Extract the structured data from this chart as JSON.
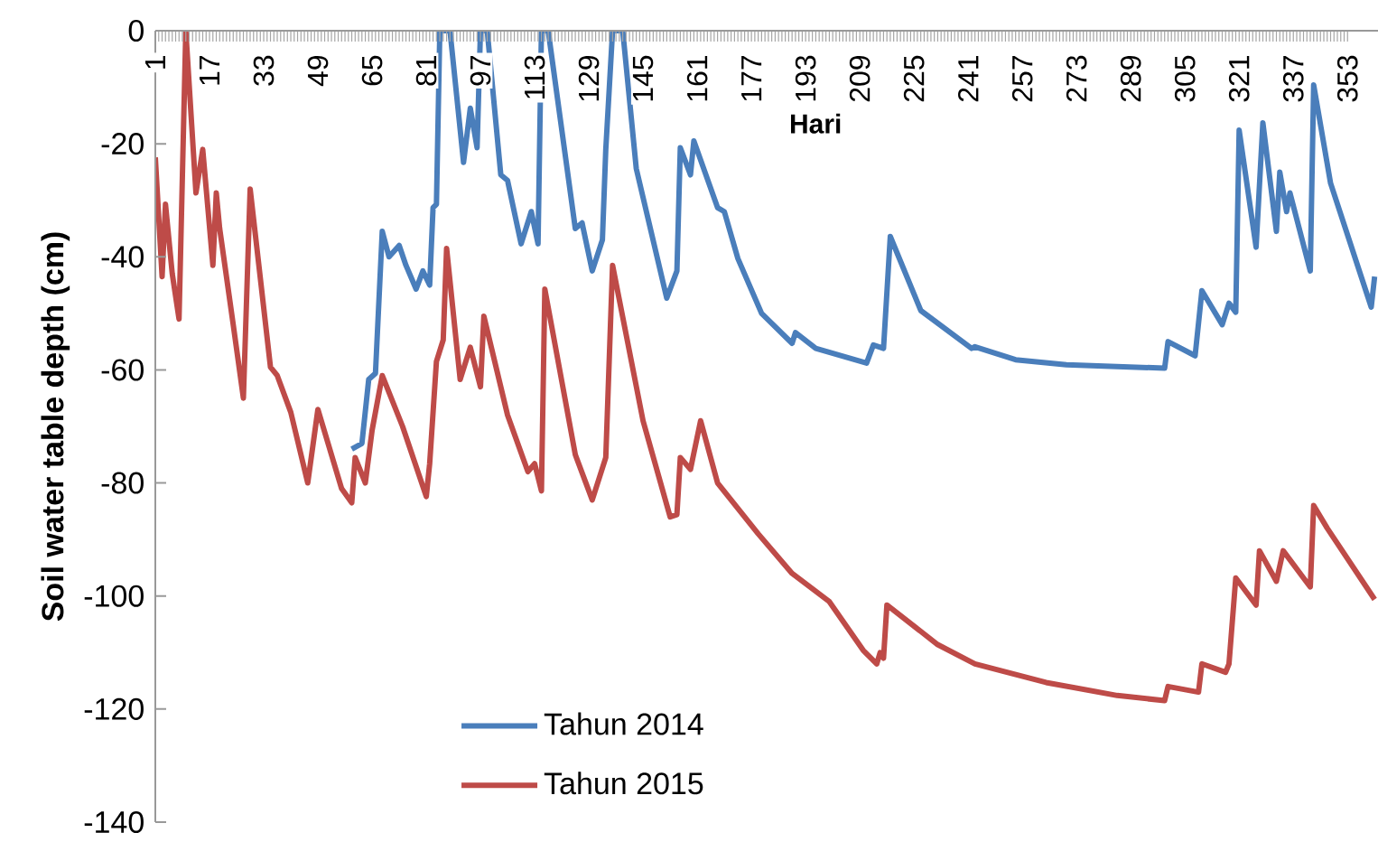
{
  "chart_data": {
    "type": "line",
    "xlabel": "Hari",
    "ylabel": "Soil water table depth (cm)",
    "xlim": [
      1,
      362
    ],
    "xticks": [
      1,
      17,
      33,
      49,
      65,
      81,
      97,
      113,
      129,
      145,
      161,
      177,
      193,
      209,
      225,
      241,
      257,
      273,
      289,
      305,
      321,
      337,
      353
    ],
    "ylim": [
      -140,
      0
    ],
    "yticks": [
      0,
      -20,
      -40,
      -60,
      -80,
      -100,
      -120,
      -140
    ],
    "legend": "bottom",
    "marker": "none",
    "line_style": "solid",
    "grid": false,
    "series": [
      {
        "name": "Tahun 2014",
        "color": "#4a7ebb",
        "x": [
          59,
          62,
          64,
          66,
          68,
          70,
          73,
          75,
          78,
          80,
          82,
          83,
          84,
          85,
          88,
          92,
          94,
          96,
          97,
          99,
          103,
          105,
          109,
          112,
          114,
          115,
          117,
          125,
          127,
          130,
          133,
          134,
          136,
          139,
          143,
          152,
          155,
          156,
          159,
          160,
          167,
          169,
          173,
          180,
          189,
          190,
          196,
          211,
          213,
          216,
          218,
          227,
          242,
          243,
          255,
          270,
          299,
          300,
          308,
          310,
          316,
          318,
          320,
          321,
          326,
          328,
          332,
          333,
          335,
          336,
          342,
          343,
          348,
          360,
          361
        ],
        "values": [
          -74,
          -73,
          -61.7,
          -60.6,
          -35.5,
          -40,
          -38,
          -41.5,
          -45.7,
          -42.5,
          -45,
          -31.3,
          -30.7,
          0,
          0,
          -23.3,
          -13.7,
          -20.7,
          0,
          0,
          -25.5,
          -26.5,
          -37.7,
          -32,
          -37.7,
          0,
          0,
          -35,
          -34,
          -42.5,
          -37,
          -21,
          0,
          0,
          -24.4,
          -47.3,
          -42.5,
          -20.7,
          -25.5,
          -19.5,
          -31.3,
          -32,
          -40.3,
          -50,
          -55.3,
          -53.4,
          -56.2,
          -58.8,
          -55.6,
          -56.2,
          -36.4,
          -49.5,
          -56.2,
          -55.9,
          -58.2,
          -59.1,
          -59.7,
          -55,
          -57.5,
          -46,
          -52,
          -48.2,
          -49.8,
          -17.6,
          -38.3,
          -16.3,
          -35.5,
          -25,
          -32,
          -28.7,
          -42.5,
          -9.6,
          -27,
          -48.9,
          -43.5
        ]
      },
      {
        "name": "Tahun 2015",
        "color": "#be4b48",
        "x": [
          1,
          3,
          4,
          6,
          8,
          10,
          13,
          15,
          18,
          19,
          20,
          24,
          27,
          29,
          35,
          37,
          41,
          46,
          49,
          56,
          59,
          60,
          63,
          65,
          68,
          74,
          81,
          82,
          84,
          86,
          87,
          91,
          94,
          97,
          98,
          105,
          111,
          113,
          115,
          116,
          125,
          130,
          134,
          136,
          145,
          153,
          155,
          156,
          159,
          162,
          167,
          179,
          189,
          200,
          210,
          214,
          215,
          216,
          217,
          232,
          243,
          264,
          285,
          299,
          300,
          309,
          310,
          317,
          318,
          320,
          326,
          327,
          332,
          334,
          342,
          343,
          347,
          361
        ],
        "values": [
          -22.4,
          -43.5,
          -30.7,
          -43,
          -51,
          0,
          -28.7,
          -21,
          -41.5,
          -28.7,
          -35,
          -52,
          -65,
          -28,
          -59.5,
          -61,
          -67.5,
          -80,
          -67,
          -81,
          -83.5,
          -75.5,
          -80,
          -70.7,
          -61,
          -70,
          -82.4,
          -76.6,
          -58.5,
          -54.7,
          -38.5,
          -61.7,
          -56,
          -63,
          -50.5,
          -68,
          -78,
          -76.6,
          -81.4,
          -45.7,
          -75,
          -83,
          -75.5,
          -41.5,
          -69,
          -86,
          -85.6,
          -75.5,
          -77.6,
          -69,
          -80,
          -89,
          -96,
          -101,
          -109.6,
          -112,
          -110,
          -111,
          -101.6,
          -108.6,
          -112,
          -115.3,
          -117.6,
          -118.5,
          -116,
          -117,
          -112,
          -113.5,
          -112,
          -96.8,
          -101.6,
          -92,
          -97.4,
          -92,
          -98.4,
          -84,
          -88,
          -100.6
        ]
      }
    ]
  }
}
